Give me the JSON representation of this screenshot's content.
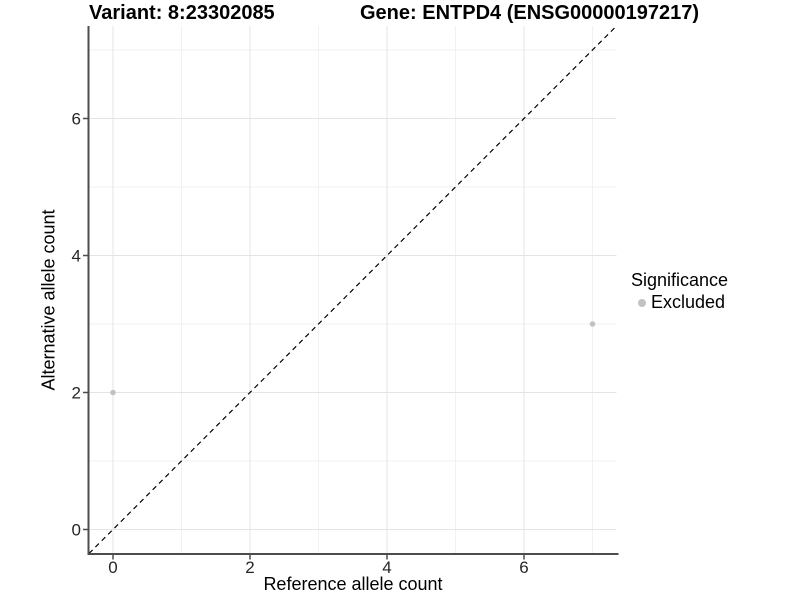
{
  "header": {
    "variant_title": "Variant: 8:23302085",
    "gene_title": "Gene: ENTPD4 (ENSG00000197217)"
  },
  "chart_data": {
    "type": "scatter",
    "title": "Variant: 8:23302085  /  Gene: ENTPD4 (ENSG00000197217)",
    "xlabel": "Reference allele count",
    "ylabel": "Alternative allele count",
    "xlim": [
      -0.35,
      7.35
    ],
    "ylim": [
      -0.35,
      7.35
    ],
    "x_ticks": [
      0,
      2,
      4,
      6
    ],
    "y_ticks": [
      0,
      2,
      4,
      6
    ],
    "minor_breaks": [
      1,
      3,
      5,
      7
    ],
    "grid": true,
    "points": [
      {
        "x": 0,
        "y": 2,
        "significance": "Excluded"
      },
      {
        "x": 7,
        "y": 3,
        "significance": "Excluded"
      }
    ],
    "identity_line": {
      "style": "dashed",
      "from": [
        -0.35,
        -0.35
      ],
      "to": [
        7.35,
        7.35
      ]
    },
    "legend": {
      "title": "Significance",
      "position": "right",
      "items": [
        {
          "label": "Excluded",
          "color": "#c2c2c2"
        }
      ]
    },
    "style": {
      "point_color": "#c2c2c2",
      "grid_major_color": "#e4e4e4",
      "grid_minor_color": "#f1f1f1",
      "axis_line_color": "#4d4d4d",
      "identity_line_color": "#000000",
      "tick_text_color": "#262626",
      "background_color": "#ffffff"
    }
  }
}
